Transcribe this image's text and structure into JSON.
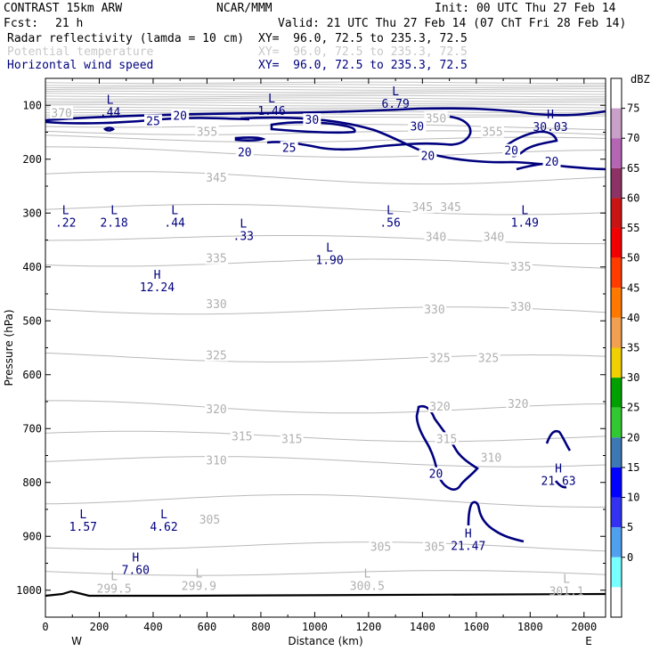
{
  "header": {
    "model": "CONTRAST 15km ARW",
    "center": "NCAR/MMM",
    "init": "Init: 00 UTC Thu 27 Feb 14",
    "fcst_label": "Fcst:",
    "fcst_value": "21 h",
    "valid": "Valid: 21 UTC Thu 27 Feb 14 (07 ChT Fri 28 Feb 14)",
    "fields": [
      {
        "name": "Radar reflectivity (lamda = 10 cm)",
        "xy": "XY=  96.0, 72.5 to 235.3, 72.5",
        "color": "#000000"
      },
      {
        "name": "Potential temperature",
        "xy": "XY=  96.0, 72.5 to 235.3, 72.5",
        "color": "#c8c8c8"
      },
      {
        "name": "Horizontal wind speed",
        "xy": "XY=  96.0, 72.5 to 235.3, 72.5",
        "color": "#00007f"
      }
    ]
  },
  "chart_data": {
    "type": "cross-section contour",
    "xlabel": "Distance (km)",
    "ylabel": "Pressure (hPa)",
    "xlim": [
      0,
      2080
    ],
    "ylim": [
      1050,
      50
    ],
    "x_ticks": [
      0,
      200,
      400,
      600,
      800,
      1000,
      1200,
      1400,
      1600,
      1800,
      2000
    ],
    "y_ticks": [
      100,
      200,
      300,
      400,
      500,
      600,
      700,
      800,
      900,
      1000
    ],
    "x_end_labels": {
      "left": "W",
      "right": "E"
    },
    "colorbar": {
      "unit": "dBZ",
      "levels": [
        {
          "value": "75",
          "color": "#c8a0c8"
        },
        {
          "value": "70",
          "color": "#b466b4"
        },
        {
          "value": "65",
          "color": "#8c3264"
        },
        {
          "value": "60",
          "color": "#c81414"
        },
        {
          "value": "55",
          "color": "#f00000"
        },
        {
          "value": "50",
          "color": "#ff3c00"
        },
        {
          "value": "45",
          "color": "#ff7800"
        },
        {
          "value": "40",
          "color": "#f0a050"
        },
        {
          "value": "35",
          "color": "#f0d000"
        },
        {
          "value": "30",
          "color": "#00a000"
        },
        {
          "value": "25",
          "color": "#32c832"
        },
        {
          "value": "20",
          "color": "#3c78b4"
        },
        {
          "value": "15",
          "color": "#0000ff"
        },
        {
          "value": "10",
          "color": "#3232f0"
        },
        {
          "value": "5",
          "color": "#50a0f0"
        },
        {
          "value": "0",
          "color": "#78ffff"
        }
      ]
    },
    "theta_labels": [
      {
        "text": "370",
        "x": 60,
        "p": 115
      },
      {
        "text": "355",
        "x": 600,
        "p": 150
      },
      {
        "text": "350",
        "x": 1450,
        "p": 125
      },
      {
        "text": "355",
        "x": 1660,
        "p": 150
      },
      {
        "text": "345",
        "x": 635,
        "p": 235
      },
      {
        "text": "345",
        "x": 1400,
        "p": 290
      },
      {
        "text": "345",
        "x": 1505,
        "p": 290
      },
      {
        "text": "340",
        "x": 1450,
        "p": 345
      },
      {
        "text": "340",
        "x": 1665,
        "p": 345
      },
      {
        "text": "335",
        "x": 635,
        "p": 385
      },
      {
        "text": "335",
        "x": 1765,
        "p": 400
      },
      {
        "text": "330",
        "x": 635,
        "p": 470
      },
      {
        "text": "330",
        "x": 1445,
        "p": 480
      },
      {
        "text": "330",
        "x": 1765,
        "p": 475
      },
      {
        "text": "325",
        "x": 635,
        "p": 565
      },
      {
        "text": "325",
        "x": 1465,
        "p": 570
      },
      {
        "text": "325",
        "x": 1645,
        "p": 570
      },
      {
        "text": "320",
        "x": 635,
        "p": 665
      },
      {
        "text": "320",
        "x": 1465,
        "p": 660
      },
      {
        "text": "320",
        "x": 1755,
        "p": 655
      },
      {
        "text": "315",
        "x": 730,
        "p": 715
      },
      {
        "text": "315",
        "x": 915,
        "p": 720
      },
      {
        "text": "315",
        "x": 1490,
        "p": 720
      },
      {
        "text": "310",
        "x": 635,
        "p": 760
      },
      {
        "text": "310",
        "x": 1655,
        "p": 755
      },
      {
        "text": "305",
        "x": 610,
        "p": 870
      },
      {
        "text": "305",
        "x": 1245,
        "p": 920
      },
      {
        "text": "305",
        "x": 1445,
        "p": 920
      }
    ],
    "wind_contour_labels": [
      {
        "text": "25",
        "x": 400,
        "p": 130
      },
      {
        "text": "20",
        "x": 500,
        "p": 120
      },
      {
        "text": "30",
        "x": 990,
        "p": 128
      },
      {
        "text": "30",
        "x": 1380,
        "p": 140
      },
      {
        "text": "25",
        "x": 905,
        "p": 180
      },
      {
        "text": "20",
        "x": 740,
        "p": 188
      },
      {
        "text": "20",
        "x": 1420,
        "p": 195
      },
      {
        "text": "20",
        "x": 1730,
        "p": 185
      },
      {
        "text": "20",
        "x": 1880,
        "p": 205
      },
      {
        "text": "20",
        "x": 1450,
        "p": 785
      }
    ],
    "extrema": [
      {
        "kind": "L",
        "value": ".44",
        "x": 240,
        "p": 100,
        "field": "wind"
      },
      {
        "kind": "L",
        "value": "1.46",
        "x": 840,
        "p": 98,
        "field": "wind"
      },
      {
        "kind": "L",
        "value": "6.79",
        "x": 1300,
        "p": 85,
        "field": "wind"
      },
      {
        "kind": "H",
        "value": "30.03",
        "x": 1875,
        "p": 128,
        "field": "wind"
      },
      {
        "kind": "L",
        "value": ".22",
        "x": 75,
        "p": 305,
        "field": "wind"
      },
      {
        "kind": "L",
        "value": "2.18",
        "x": 255,
        "p": 305,
        "field": "wind"
      },
      {
        "kind": "L",
        "value": ".44",
        "x": 480,
        "p": 305,
        "field": "wind"
      },
      {
        "kind": "L",
        "value": ".33",
        "x": 735,
        "p": 330,
        "field": "wind"
      },
      {
        "kind": "L",
        "value": "1.90",
        "x": 1055,
        "p": 375,
        "field": "wind"
      },
      {
        "kind": "L",
        "value": ".56",
        "x": 1280,
        "p": 305,
        "field": "wind"
      },
      {
        "kind": "L",
        "value": "1.49",
        "x": 1780,
        "p": 305,
        "field": "wind"
      },
      {
        "kind": "H",
        "value": "12.24",
        "x": 415,
        "p": 425,
        "field": "wind"
      },
      {
        "kind": "H",
        "value": "21.63",
        "x": 1905,
        "p": 785,
        "field": "wind"
      },
      {
        "kind": "H",
        "value": "21.47",
        "x": 1570,
        "p": 905,
        "field": "wind"
      },
      {
        "kind": "L",
        "value": "1.57",
        "x": 140,
        "p": 870,
        "field": "wind"
      },
      {
        "kind": "L",
        "value": "4.62",
        "x": 440,
        "p": 870,
        "field": "wind"
      },
      {
        "kind": "H",
        "value": "7.60",
        "x": 335,
        "p": 950,
        "field": "wind"
      },
      {
        "kind": "L",
        "value": "299.5",
        "x": 255,
        "p": 985,
        "field": "theta"
      },
      {
        "kind": "L",
        "value": "299.9",
        "x": 570,
        "p": 980,
        "field": "theta"
      },
      {
        "kind": "L",
        "value": "300.5",
        "x": 1195,
        "p": 980,
        "field": "theta"
      },
      {
        "kind": "L",
        "value": "301.1",
        "x": 1935,
        "p": 990,
        "field": "theta"
      }
    ]
  }
}
